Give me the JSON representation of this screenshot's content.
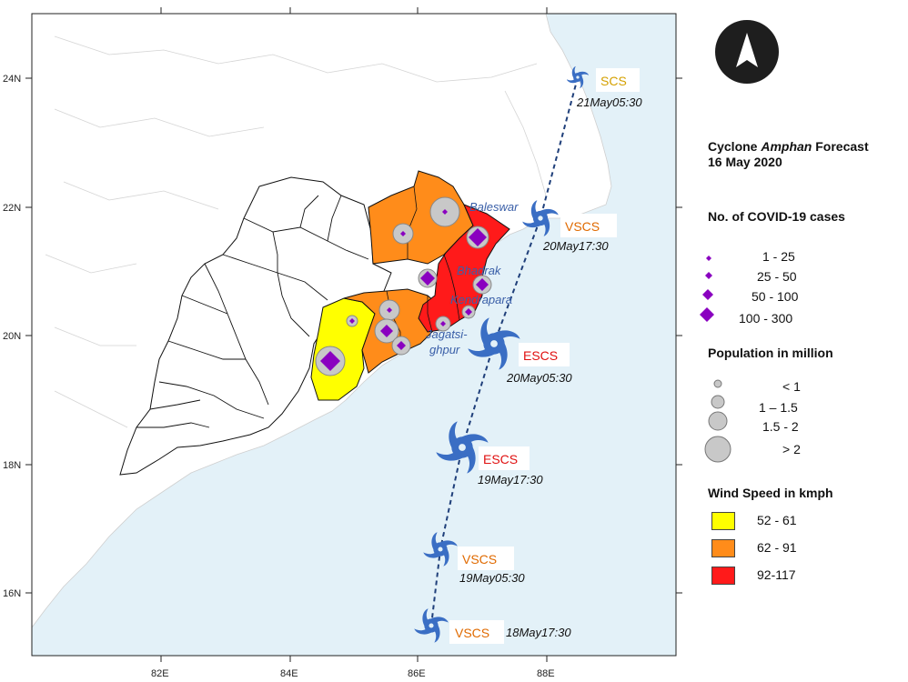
{
  "map": {
    "axes": {
      "lon_ticks": [
        "82E",
        "84E",
        "86E",
        "88E"
      ],
      "lat_ticks": [
        "24N",
        "22N",
        "20N",
        "18N",
        "16N"
      ]
    },
    "colors": {
      "sea": "#e3f1f8",
      "land": "#ffffff",
      "wind_low": "#ffff00",
      "wind_mid": "#ff8c1a",
      "wind_high": "#ff1a1a",
      "covid_marker": "#8a00c0",
      "population_circle": "#c8c8c8",
      "track": "#1f3f7a",
      "cyclone_icon": "#3a6ec4",
      "scs_label": "#d4a000",
      "vscs_label": "#e06a00",
      "escs_label": "#e01010",
      "place_label": "#3a5fa8"
    },
    "track_points": [
      {
        "category": "SCS",
        "time": "21May05:30",
        "category_color": "#d4a000"
      },
      {
        "category": "VSCS",
        "time": "20May17:30",
        "category_color": "#e06a00"
      },
      {
        "category": "ESCS",
        "time": "20May05:30",
        "category_color": "#e01010"
      },
      {
        "category": "ESCS",
        "time": "19May17:30",
        "category_color": "#e01010"
      },
      {
        "category": "VSCS",
        "time": "19May05:30",
        "category_color": "#e06a00"
      },
      {
        "category": "VSCS",
        "time": "18May17:30",
        "category_color": "#e06a00"
      }
    ],
    "places": [
      "Baleswar",
      "Bhadrak",
      "Kendrapara",
      "Jagatsi-",
      "ghpur"
    ]
  },
  "legend": {
    "north_icon": "north-arrow-icon",
    "title_line1": "Cyclone ",
    "title_italic": "Amphan",
    "title_line1_end": " Forecast",
    "title_line2": "16 May 2020",
    "covid": {
      "title": "No. of COVID-19 cases",
      "items": [
        "1 - 25",
        "25 - 50",
        "50 - 100",
        "100 - 300"
      ]
    },
    "population": {
      "title": "Population in million",
      "items": [
        "< 1",
        "1 – 1.5",
        "1.5 - 2",
        "> 2"
      ]
    },
    "wind": {
      "title": "Wind Speed in kmph",
      "items": [
        {
          "label": "52 - 61",
          "color": "#ffff00"
        },
        {
          "label": "62 - 91",
          "color": "#ff8c1a"
        },
        {
          "label": "92-117",
          "color": "#ff1a1a"
        }
      ]
    }
  }
}
